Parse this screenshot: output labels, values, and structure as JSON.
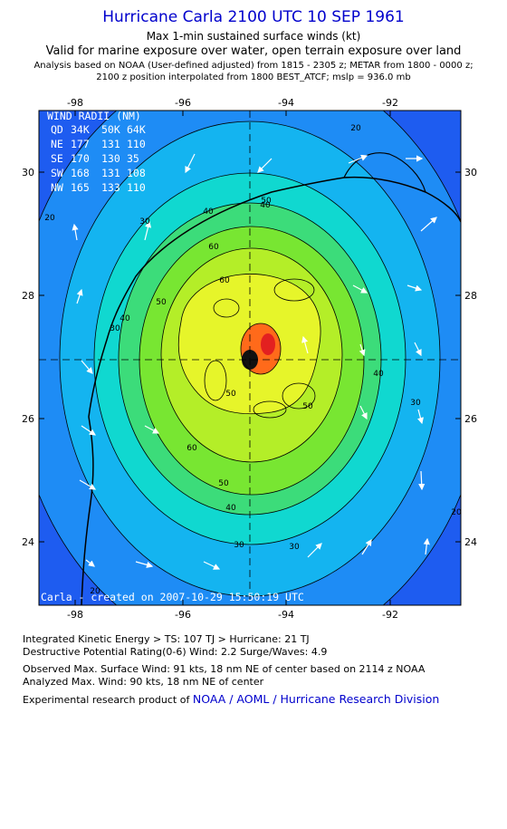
{
  "header": {
    "title": "Hurricane Carla 2100 UTC 10 SEP 1961",
    "subtitle1": "Max 1-min sustained surface winds (kt)",
    "subtitle2": "Valid for marine exposure over water, open terrain exposure over land",
    "subtitle3": "Analysis based on  NOAA (User-defined adjusted) from 1815 - 2305 z;  METAR from 1800 - 0000 z;",
    "subtitle4": "2100 z position interpolated from 1800 BEST_ATCF; mslp = 936.0 mb"
  },
  "map": {
    "lon_ticks": [
      "-98",
      "-96",
      "-94",
      "-92"
    ],
    "lat_ticks": [
      "30",
      "28",
      "26",
      "24"
    ],
    "contour_labels": [
      "20",
      "30",
      "40",
      "50",
      "60",
      "30",
      "40",
      "50",
      "60",
      "40",
      "30",
      "30",
      "20",
      "60",
      "50",
      "40",
      "30",
      "50",
      "50",
      "40",
      "20",
      "20"
    ],
    "wind_radii": {
      "title": "WIND RADII (NM)",
      "header": [
        "QD",
        "34K",
        "50K",
        "64K"
      ],
      "rows": [
        [
          "NE",
          "177",
          "131",
          "110"
        ],
        [
          "SE",
          "170",
          "130",
          "35"
        ],
        [
          "SW",
          "168",
          "131",
          "108"
        ],
        [
          "NW",
          "165",
          "133",
          "110"
        ]
      ]
    },
    "credit": "Carla - created on 2007-10-29 15:50:19 UTC",
    "colors": {
      "band20": "#1e5cf0",
      "band30": "#1e8cf5",
      "band40": "#14b4f0",
      "band50": "#10d8d0",
      "band60": "#3cdc7a",
      "band70": "#78e632",
      "band80": "#b4ee28",
      "band90": "#e6f52a",
      "core": "#ff6a1a"
    }
  },
  "footer": {
    "ike": "Integrated Kinetic Energy > TS: 107 TJ   > Hurricane: 21 TJ",
    "dpr": "Destructive Potential Rating(0-6)   Wind: 2.2 Surge/Waves: 4.9",
    "observed": "Observed Max. Surface Wind: 91 kts, 18 nm NE of center based on 2114 z NOAA",
    "analyzed": "Analyzed Max. Wind: 90 kts, 18 nm NE of center",
    "product_prefix": "Experimental research product of",
    "product_link": "NOAA / AOML / Hurricane Research Division"
  }
}
